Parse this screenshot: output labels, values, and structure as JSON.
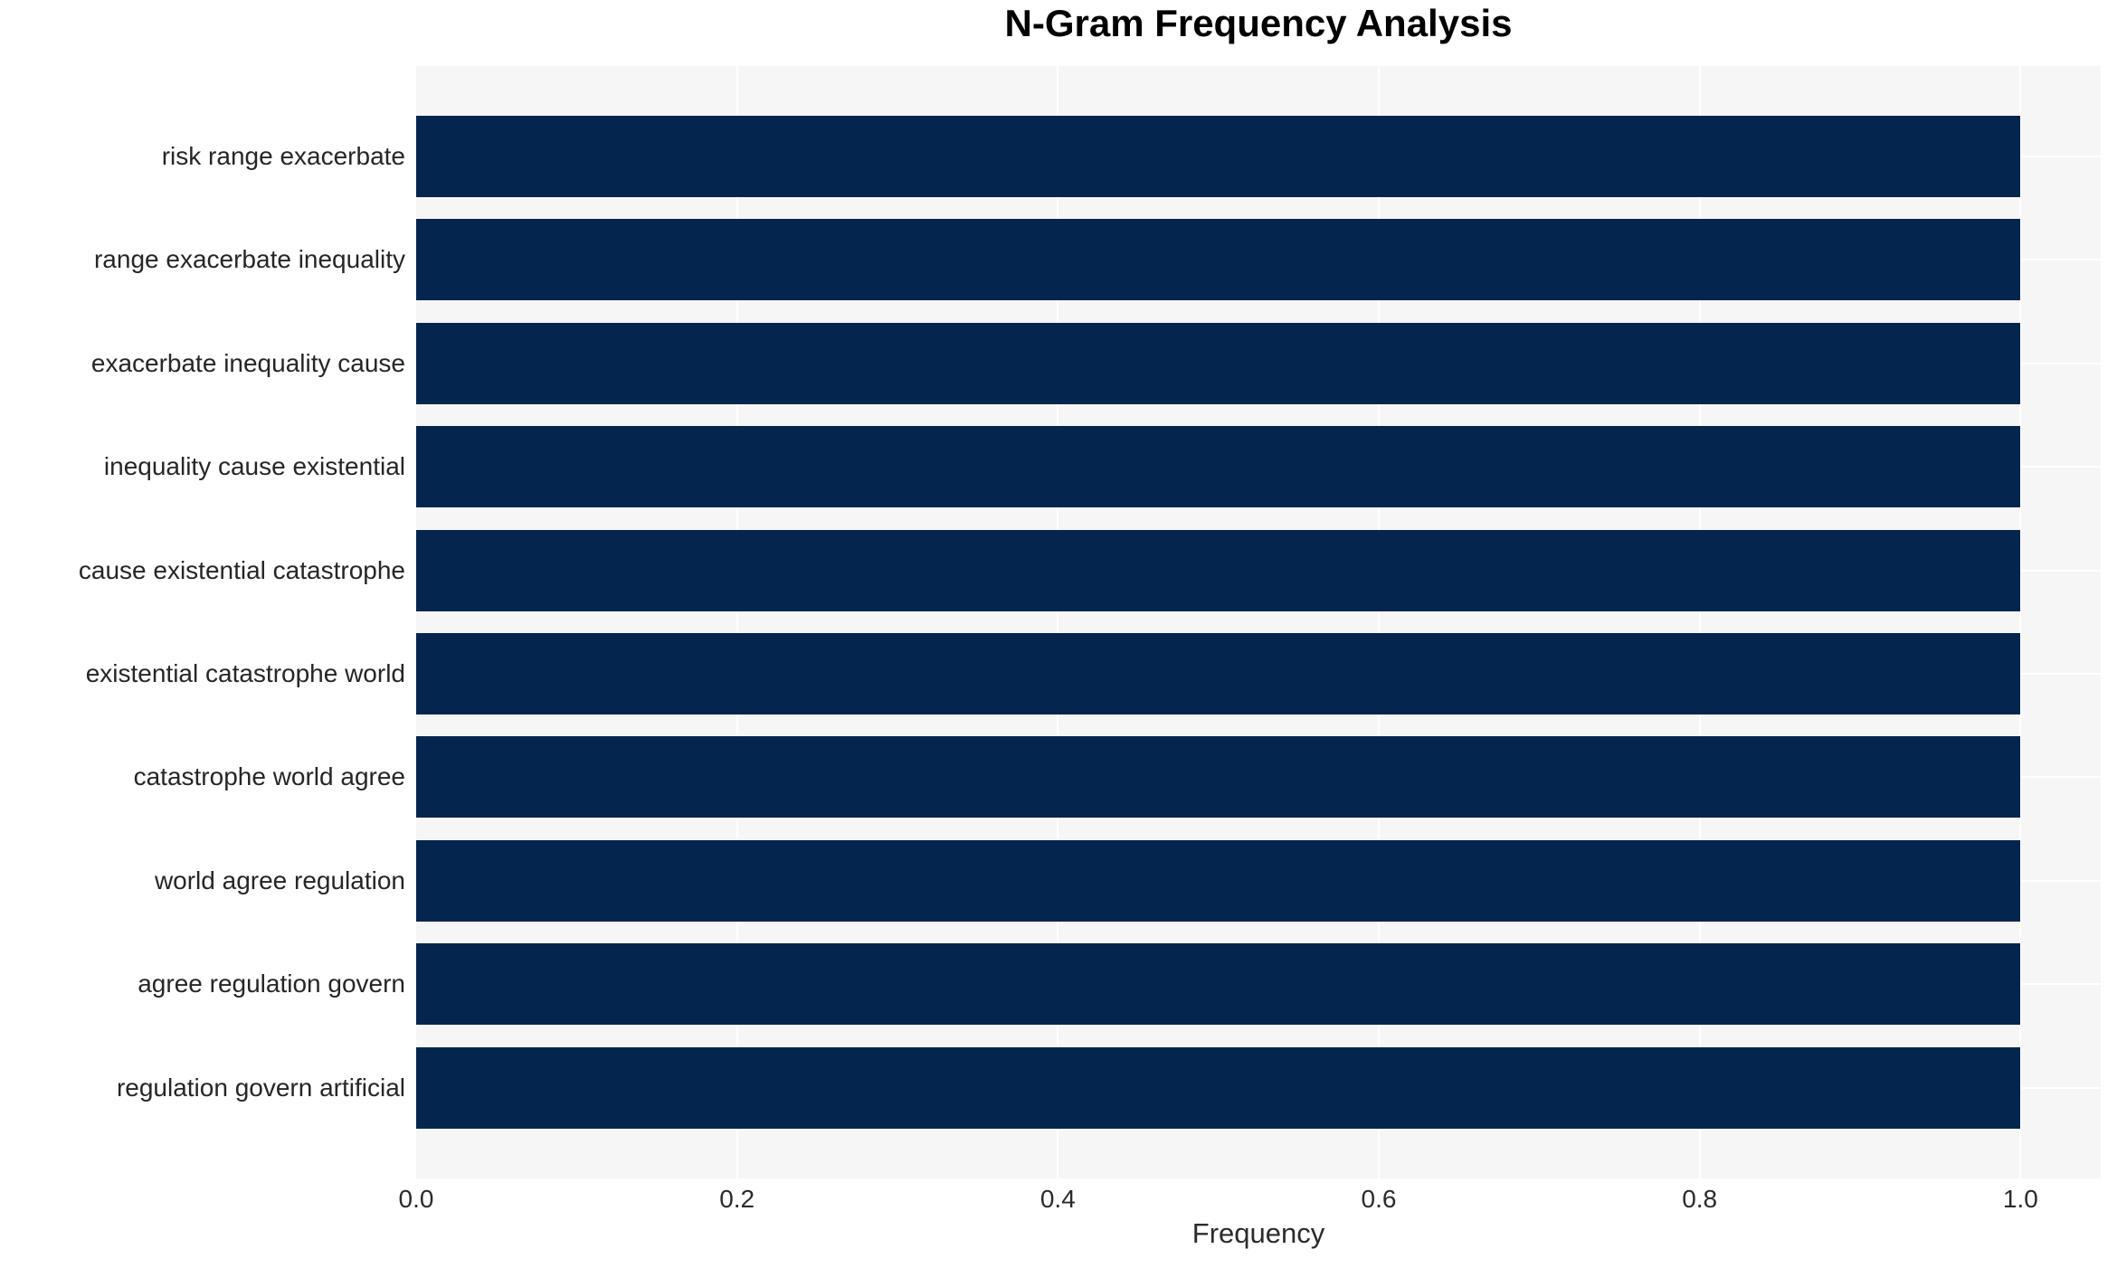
{
  "title": "N-Gram Frequency Analysis",
  "chart_data": {
    "type": "bar",
    "orientation": "horizontal",
    "title": "N-Gram Frequency Analysis",
    "xlabel": "Frequency",
    "ylabel": "",
    "categories": [
      "risk range exacerbate",
      "range exacerbate inequality",
      "exacerbate inequality cause",
      "inequality cause existential",
      "cause existential catastrophe",
      "existential catastrophe world",
      "catastrophe world agree",
      "world agree regulation",
      "agree regulation govern",
      "regulation govern artificial"
    ],
    "values": [
      1.0,
      1.0,
      1.0,
      1.0,
      1.0,
      1.0,
      1.0,
      1.0,
      1.0,
      1.0
    ],
    "x_ticks": [
      0.0,
      0.2,
      0.4,
      0.6,
      0.8,
      1.0
    ],
    "x_tick_labels": [
      "0.0",
      "0.2",
      "0.4",
      "0.6",
      "0.8",
      "1.0"
    ],
    "xlim": [
      0,
      1.05
    ],
    "grid": true,
    "legend_position": "none",
    "colors": {
      "bar": "#04254e",
      "plot_background": "#f6f6f7",
      "gridline": "#ffffff",
      "tick_text": "#2b2b2b",
      "category_text": "#262626",
      "title_text": "#000000"
    }
  }
}
